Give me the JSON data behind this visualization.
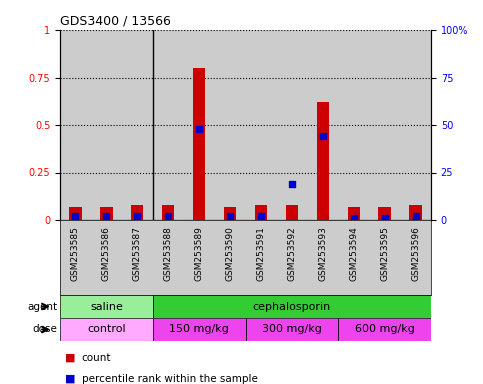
{
  "title": "GDS3400 / 13566",
  "samples": [
    "GSM253585",
    "GSM253586",
    "GSM253587",
    "GSM253588",
    "GSM253589",
    "GSM253590",
    "GSM253591",
    "GSM253592",
    "GSM253593",
    "GSM253594",
    "GSM253595",
    "GSM253596"
  ],
  "count_values": [
    0.07,
    0.07,
    0.08,
    0.08,
    0.8,
    0.07,
    0.08,
    0.08,
    0.62,
    0.07,
    0.07,
    0.08
  ],
  "percentile_values": [
    0.02,
    0.02,
    0.02,
    0.02,
    0.48,
    0.02,
    0.02,
    0.19,
    0.44,
    0.01,
    0.01,
    0.02
  ],
  "ylim": [
    0,
    1.0
  ],
  "yticks": [
    0,
    0.25,
    0.5,
    0.75,
    1.0
  ],
  "ytick_labels_left": [
    "0",
    "0.25",
    "0.5",
    "0.75",
    "1"
  ],
  "ytick_labels_right": [
    "0",
    "25",
    "50",
    "75",
    "100%"
  ],
  "bar_color": "#cc0000",
  "dot_color": "#0000cc",
  "agent_groups": [
    {
      "label": "saline",
      "start": 0,
      "end": 3,
      "color": "#99ee99"
    },
    {
      "label": "cephalosporin",
      "start": 3,
      "end": 12,
      "color": "#33cc33"
    }
  ],
  "dose_groups": [
    {
      "label": "control",
      "start": 0,
      "end": 3,
      "color": "#ffaaff"
    },
    {
      "label": "150 mg/kg",
      "start": 3,
      "end": 6,
      "color": "#ee44ee"
    },
    {
      "label": "300 mg/kg",
      "start": 6,
      "end": 9,
      "color": "#ee44ee"
    },
    {
      "label": "600 mg/kg",
      "start": 9,
      "end": 12,
      "color": "#ee44ee"
    }
  ],
  "legend_count_color": "#cc0000",
  "legend_dot_color": "#0000cc",
  "bar_width": 0.4,
  "background_color": "#ffffff",
  "plot_bg_color": "#cccccc"
}
